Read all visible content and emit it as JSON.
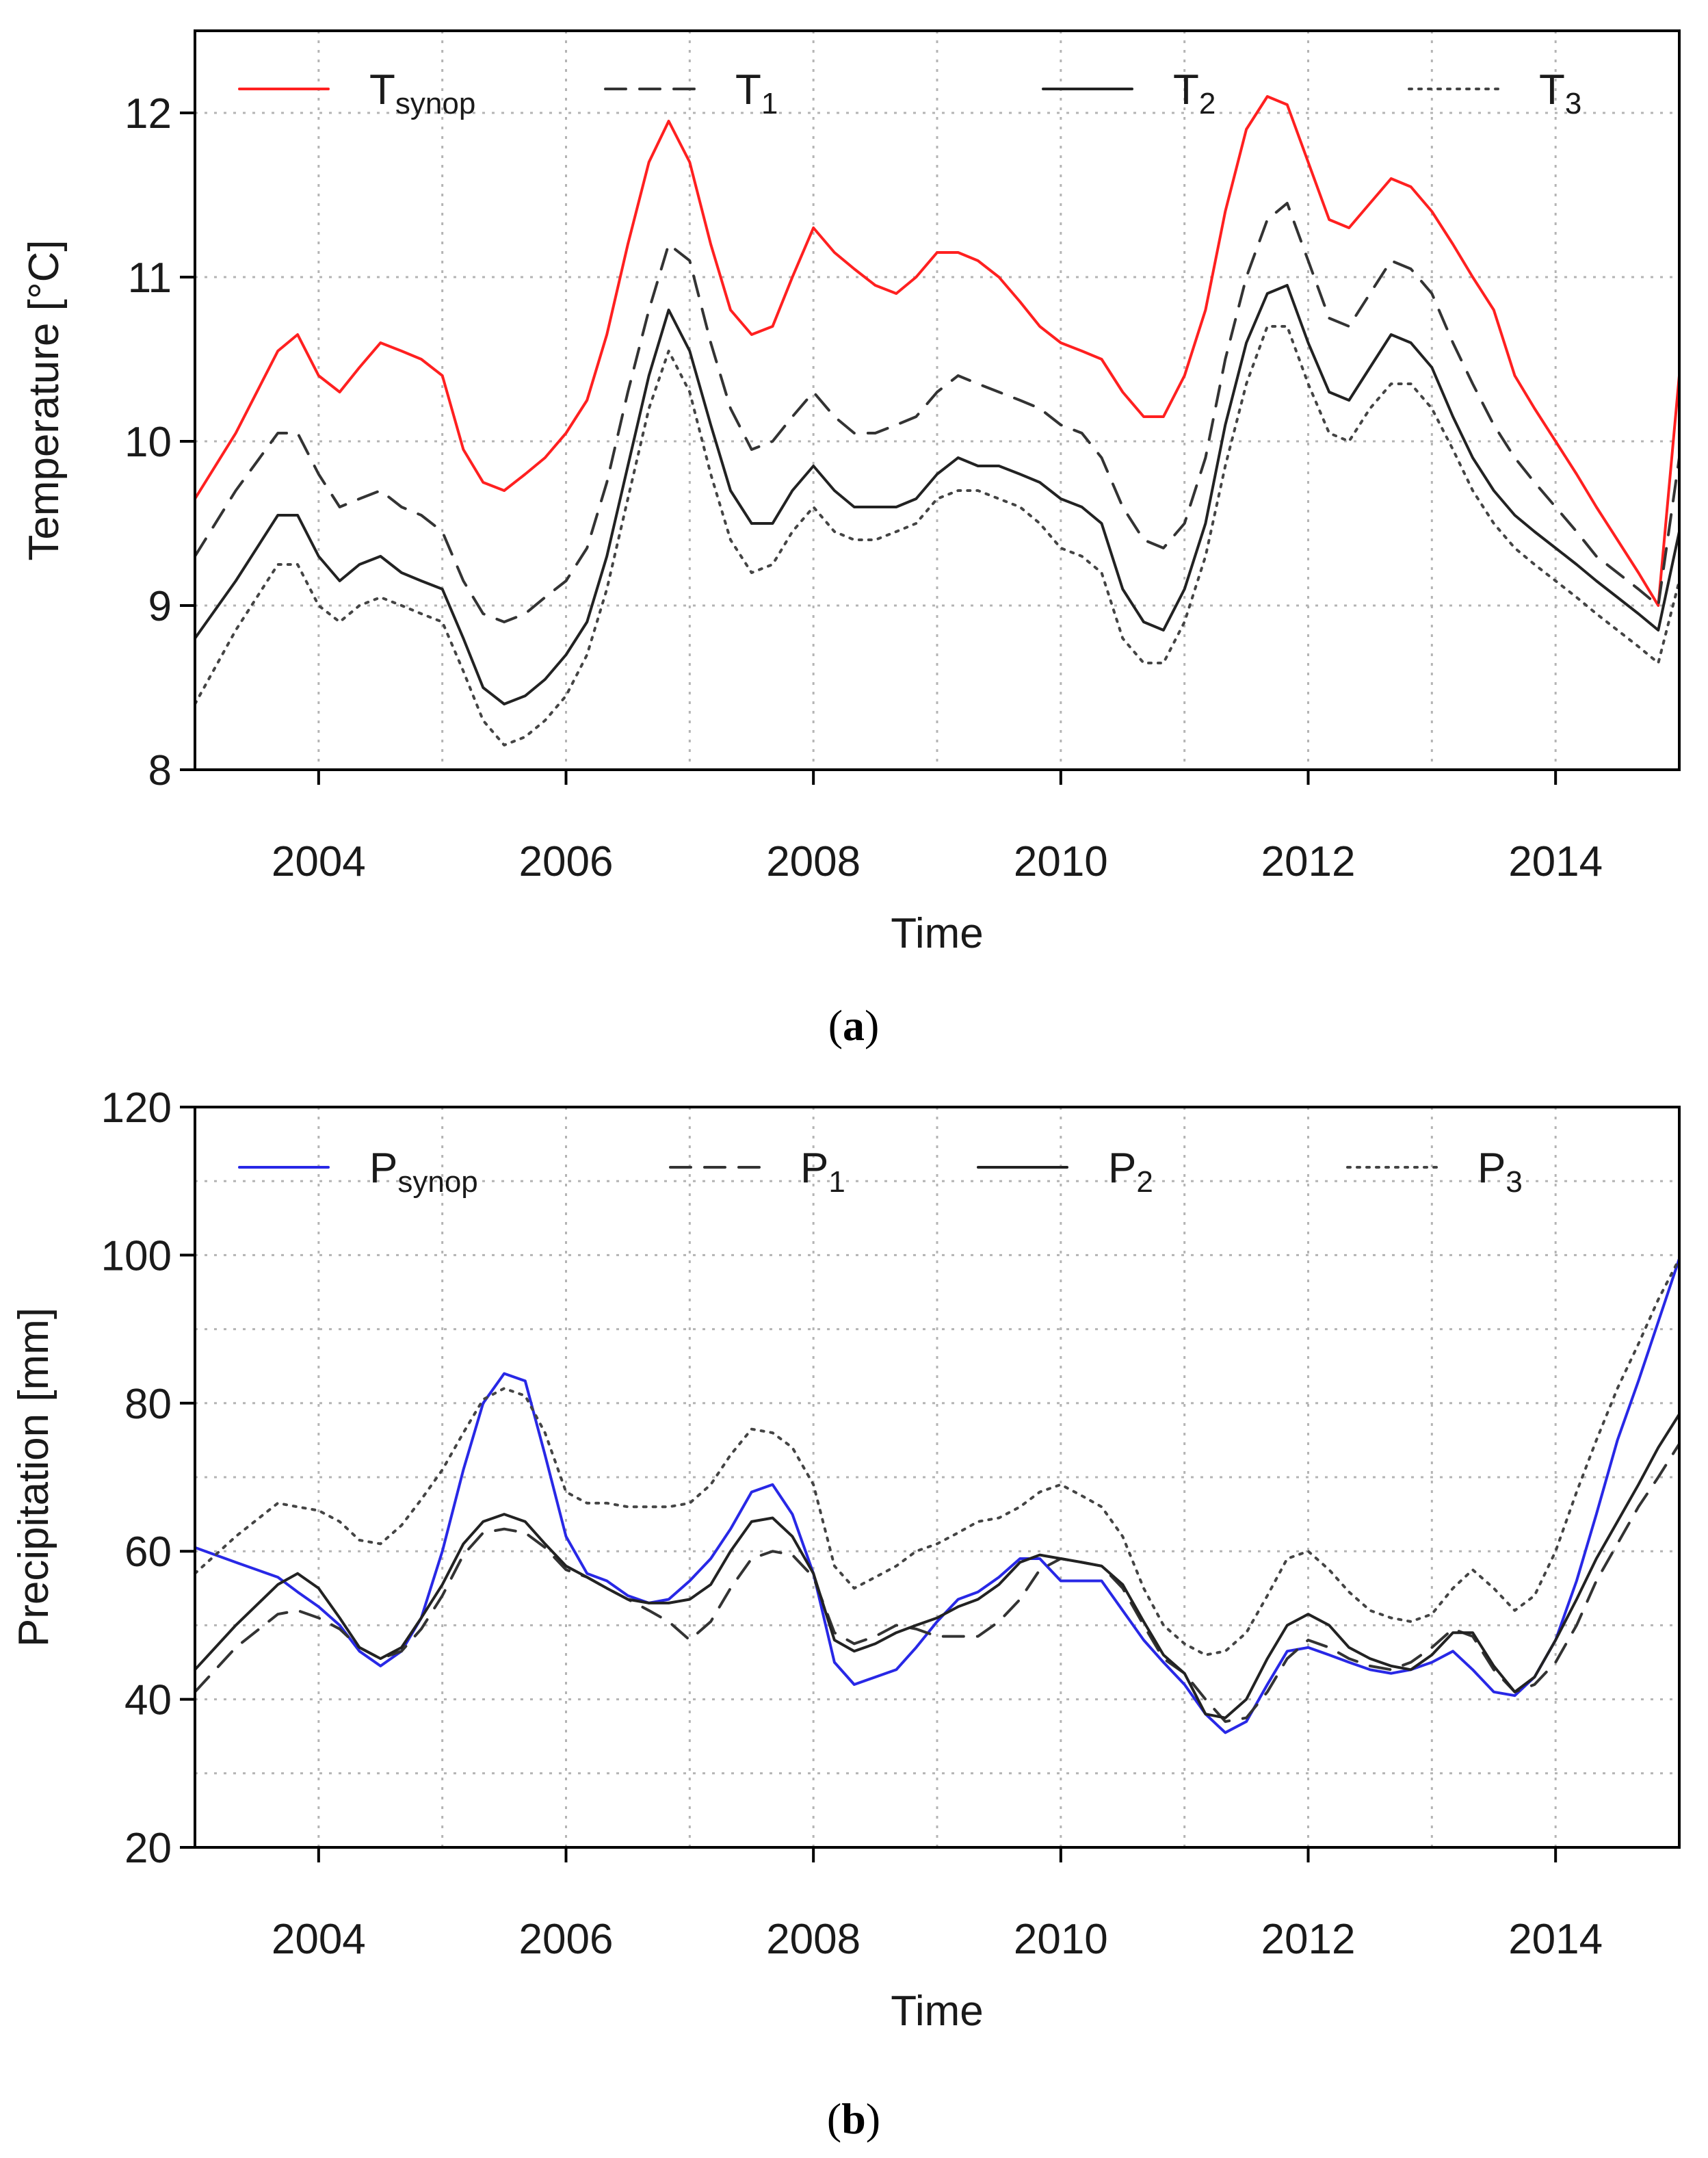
{
  "captions": [
    {
      "open": "(",
      "letter": "a",
      "close": ")"
    },
    {
      "open": "(",
      "letter": "b",
      "close": ")"
    }
  ],
  "chart_data": [
    {
      "id": "temperature",
      "type": "line",
      "xlabel": "Time",
      "ylabel": "Temperature [°C]",
      "xlim": [
        2003,
        2015
      ],
      "ylim": [
        8,
        12.5
      ],
      "yticks": [
        8,
        9,
        10,
        11,
        12
      ],
      "ytick_labels": [
        "8",
        "9",
        "10",
        "11",
        "12"
      ],
      "xticks": [
        2004,
        2006,
        2008,
        2010,
        2012,
        2014
      ],
      "xtick_labels": [
        "2004",
        "2006",
        "2008",
        "2010",
        "2012",
        "2014"
      ],
      "grid_x": [
        2003,
        2004,
        2005,
        2006,
        2007,
        2008,
        2009,
        2010,
        2011,
        2012,
        2013,
        2014
      ],
      "grid_y": [
        8,
        9,
        10,
        11,
        12
      ],
      "legend_position": "top",
      "x": [
        2003.0,
        2003.33,
        2003.67,
        2003.83,
        2004.0,
        2004.17,
        2004.33,
        2004.5,
        2004.67,
        2004.83,
        2005.0,
        2005.17,
        2005.33,
        2005.5,
        2005.67,
        2005.83,
        2006.0,
        2006.17,
        2006.33,
        2006.5,
        2006.67,
        2006.83,
        2007.0,
        2007.17,
        2007.33,
        2007.5,
        2007.67,
        2007.83,
        2008.0,
        2008.17,
        2008.33,
        2008.5,
        2008.67,
        2008.83,
        2009.0,
        2009.17,
        2009.33,
        2009.5,
        2009.67,
        2009.83,
        2010.0,
        2010.17,
        2010.33,
        2010.5,
        2010.67,
        2010.83,
        2011.0,
        2011.17,
        2011.33,
        2011.5,
        2011.67,
        2011.83,
        2012.0,
        2012.17,
        2012.33,
        2012.5,
        2012.67,
        2012.83,
        2013.0,
        2013.17,
        2013.33,
        2013.5,
        2013.67,
        2013.83,
        2014.0,
        2014.17,
        2014.33,
        2014.5,
        2014.67,
        2014.83,
        2015.0
      ],
      "series": [
        {
          "name": "T",
          "sub": "synop",
          "color": "#ff2020",
          "dash": "",
          "width": 4,
          "values": [
            9.65,
            10.05,
            10.55,
            10.65,
            10.4,
            10.3,
            10.45,
            10.6,
            10.55,
            10.5,
            10.4,
            9.95,
            9.75,
            9.7,
            9.8,
            9.9,
            10.05,
            10.25,
            10.65,
            11.2,
            11.7,
            11.95,
            11.7,
            11.2,
            10.8,
            10.65,
            10.7,
            11.0,
            11.3,
            11.15,
            11.05,
            10.95,
            10.9,
            11.0,
            11.15,
            11.15,
            11.1,
            11.0,
            10.85,
            10.7,
            10.6,
            10.55,
            10.5,
            10.3,
            10.15,
            10.15,
            10.4,
            10.8,
            11.4,
            11.9,
            12.1,
            12.05,
            11.7,
            11.35,
            11.3,
            11.45,
            11.6,
            11.55,
            11.4,
            11.2,
            11.0,
            10.8,
            10.4,
            10.2,
            10.0,
            9.8,
            9.6,
            9.4,
            9.2,
            9.0,
            10.4
          ]
        },
        {
          "name": "T",
          "sub": "1",
          "color": "#333333",
          "dash": "30 20",
          "width": 4,
          "values": [
            9.3,
            9.7,
            10.05,
            10.05,
            9.8,
            9.6,
            9.65,
            9.7,
            9.6,
            9.55,
            9.45,
            9.15,
            8.95,
            8.9,
            8.95,
            9.05,
            9.15,
            9.35,
            9.75,
            10.3,
            10.8,
            11.2,
            11.1,
            10.6,
            10.2,
            9.95,
            10.0,
            10.15,
            10.3,
            10.15,
            10.05,
            10.05,
            10.1,
            10.15,
            10.3,
            10.4,
            10.35,
            10.3,
            10.25,
            10.2,
            10.1,
            10.05,
            9.9,
            9.6,
            9.4,
            9.35,
            9.5,
            9.9,
            10.5,
            11.0,
            11.35,
            11.45,
            11.1,
            10.75,
            10.7,
            10.9,
            11.1,
            11.05,
            10.9,
            10.6,
            10.35,
            10.1,
            9.9,
            9.75,
            9.6,
            9.45,
            9.3,
            9.2,
            9.1,
            9.0,
            9.9
          ]
        },
        {
          "name": "T",
          "sub": "2",
          "color": "#222222",
          "dash": "",
          "width": 4,
          "values": [
            8.8,
            9.15,
            9.55,
            9.55,
            9.3,
            9.15,
            9.25,
            9.3,
            9.2,
            9.15,
            9.1,
            8.8,
            8.5,
            8.4,
            8.45,
            8.55,
            8.7,
            8.9,
            9.3,
            9.85,
            10.4,
            10.8,
            10.55,
            10.1,
            9.7,
            9.5,
            9.5,
            9.7,
            9.85,
            9.7,
            9.6,
            9.6,
            9.6,
            9.65,
            9.8,
            9.9,
            9.85,
            9.85,
            9.8,
            9.75,
            9.65,
            9.6,
            9.5,
            9.1,
            8.9,
            8.85,
            9.1,
            9.5,
            10.1,
            10.6,
            10.9,
            10.95,
            10.6,
            10.3,
            10.25,
            10.45,
            10.65,
            10.6,
            10.45,
            10.15,
            9.9,
            9.7,
            9.55,
            9.45,
            9.35,
            9.25,
            9.15,
            9.05,
            8.95,
            8.85,
            9.45
          ]
        },
        {
          "name": "T",
          "sub": "3",
          "color": "#444444",
          "dash": "4 10",
          "width": 4,
          "values": [
            8.4,
            8.85,
            9.25,
            9.25,
            9.0,
            8.9,
            9.0,
            9.05,
            9.0,
            8.95,
            8.9,
            8.6,
            8.3,
            8.15,
            8.2,
            8.3,
            8.45,
            8.7,
            9.1,
            9.65,
            10.2,
            10.55,
            10.3,
            9.8,
            9.4,
            9.2,
            9.25,
            9.45,
            9.6,
            9.45,
            9.4,
            9.4,
            9.45,
            9.5,
            9.65,
            9.7,
            9.7,
            9.65,
            9.6,
            9.5,
            9.35,
            9.3,
            9.2,
            8.8,
            8.65,
            8.65,
            8.9,
            9.3,
            9.85,
            10.35,
            10.7,
            10.7,
            10.35,
            10.05,
            10.0,
            10.2,
            10.35,
            10.35,
            10.2,
            9.95,
            9.7,
            9.5,
            9.35,
            9.25,
            9.15,
            9.05,
            8.95,
            8.85,
            8.75,
            8.65,
            9.15
          ]
        }
      ]
    },
    {
      "id": "precipitation",
      "type": "line",
      "xlabel": "Time",
      "ylabel": "Precipitation [mm]",
      "xlim": [
        2003,
        2015
      ],
      "ylim": [
        20,
        120
      ],
      "yticks": [
        20,
        40,
        60,
        80,
        100,
        120
      ],
      "ytick_labels": [
        "20",
        "40",
        "60",
        "80",
        "100",
        "120"
      ],
      "xticks": [
        2004,
        2006,
        2008,
        2010,
        2012,
        2014
      ],
      "xtick_labels": [
        "2004",
        "2006",
        "2008",
        "2010",
        "2012",
        "2014"
      ],
      "grid_x": [
        2003,
        2004,
        2005,
        2006,
        2007,
        2008,
        2009,
        2010,
        2011,
        2012,
        2013,
        2014
      ],
      "grid_y": [
        30,
        40,
        50,
        60,
        70,
        80,
        90,
        100,
        110
      ],
      "legend_position": "top",
      "x": [
        2003.0,
        2003.33,
        2003.67,
        2003.83,
        2004.0,
        2004.17,
        2004.33,
        2004.5,
        2004.67,
        2004.83,
        2005.0,
        2005.17,
        2005.33,
        2005.5,
        2005.67,
        2005.83,
        2006.0,
        2006.17,
        2006.33,
        2006.5,
        2006.67,
        2006.83,
        2007.0,
        2007.17,
        2007.33,
        2007.5,
        2007.67,
        2007.83,
        2008.0,
        2008.17,
        2008.33,
        2008.5,
        2008.67,
        2008.83,
        2009.0,
        2009.17,
        2009.33,
        2009.5,
        2009.67,
        2009.83,
        2010.0,
        2010.17,
        2010.33,
        2010.5,
        2010.67,
        2010.83,
        2011.0,
        2011.17,
        2011.33,
        2011.5,
        2011.67,
        2011.83,
        2012.0,
        2012.17,
        2012.33,
        2012.5,
        2012.67,
        2012.83,
        2013.0,
        2013.17,
        2013.33,
        2013.5,
        2013.67,
        2013.83,
        2014.0,
        2014.17,
        2014.33,
        2014.5,
        2014.67,
        2014.83,
        2015.0
      ],
      "series": [
        {
          "name": "P",
          "sub": "synop",
          "color": "#2828e6",
          "dash": "",
          "width": 4,
          "values": [
            60.5,
            58.5,
            56.5,
            54.5,
            52.5,
            50.0,
            46.5,
            44.5,
            46.5,
            51.0,
            60.0,
            71.0,
            80.0,
            84.0,
            83.0,
            73.0,
            62.0,
            57.0,
            56.0,
            54.0,
            53.0,
            53.5,
            56.0,
            59.0,
            63.0,
            68.0,
            69.0,
            65.0,
            57.0,
            45.0,
            42.0,
            43.0,
            44.0,
            47.0,
            50.5,
            53.5,
            54.5,
            56.5,
            59.0,
            59.0,
            56.0,
            56.0,
            56.0,
            52.0,
            48.0,
            45.0,
            42.0,
            38.0,
            35.5,
            37.0,
            42.0,
            46.5,
            47.0,
            46.0,
            45.0,
            44.0,
            43.5,
            44.0,
            45.0,
            46.5,
            44.0,
            41.0,
            40.5,
            43.0,
            48.0,
            56.0,
            65.0,
            75.0,
            83.0,
            91.0,
            99.5
          ]
        },
        {
          "name": "P",
          "sub": "1",
          "color": "#333333",
          "dash": "30 20",
          "width": 4,
          "values": [
            41.0,
            47.0,
            51.5,
            52.0,
            51.0,
            49.5,
            47.0,
            45.5,
            46.5,
            49.5,
            54.0,
            59.5,
            62.5,
            63.0,
            62.5,
            60.5,
            57.5,
            56.5,
            55.0,
            53.5,
            52.0,
            50.5,
            48.0,
            50.5,
            55.0,
            59.0,
            60.0,
            59.5,
            56.5,
            49.0,
            47.5,
            48.5,
            50.0,
            49.5,
            48.5,
            48.5,
            48.5,
            50.5,
            53.5,
            57.5,
            59.0,
            58.5,
            58.0,
            55.0,
            50.0,
            45.5,
            43.5,
            40.0,
            37.0,
            37.5,
            41.0,
            45.5,
            48.0,
            47.0,
            45.5,
            44.5,
            44.0,
            45.0,
            47.0,
            49.5,
            48.5,
            44.0,
            41.0,
            42.0,
            45.0,
            50.0,
            56.0,
            61.0,
            66.0,
            70.0,
            74.5
          ]
        },
        {
          "name": "P",
          "sub": "2",
          "color": "#222222",
          "dash": "",
          "width": 4,
          "values": [
            44.0,
            50.0,
            55.5,
            57.0,
            55.0,
            51.0,
            47.0,
            45.5,
            47.0,
            51.0,
            55.5,
            61.0,
            64.0,
            65.0,
            64.0,
            61.0,
            58.0,
            56.5,
            55.0,
            53.5,
            53.0,
            53.0,
            53.5,
            55.5,
            60.0,
            64.0,
            64.5,
            62.0,
            57.0,
            48.0,
            46.5,
            47.5,
            49.0,
            50.0,
            51.0,
            52.5,
            53.5,
            55.5,
            58.5,
            59.5,
            59.0,
            58.5,
            58.0,
            55.5,
            50.5,
            46.0,
            43.5,
            38.0,
            37.5,
            40.0,
            45.5,
            50.0,
            51.5,
            50.0,
            47.0,
            45.5,
            44.5,
            44.0,
            46.0,
            49.0,
            49.0,
            44.5,
            41.0,
            43.0,
            48.0,
            53.5,
            59.0,
            64.0,
            69.0,
            74.0,
            78.5
          ]
        },
        {
          "name": "P",
          "sub": "3",
          "color": "#444444",
          "dash": "4 10",
          "width": 4,
          "values": [
            57.0,
            62.0,
            66.5,
            66.0,
            65.5,
            64.0,
            61.5,
            61.0,
            63.5,
            67.0,
            71.0,
            76.0,
            80.5,
            82.0,
            81.0,
            76.0,
            68.0,
            66.5,
            66.5,
            66.0,
            66.0,
            66.0,
            66.5,
            69.0,
            73.0,
            76.5,
            76.0,
            74.0,
            69.0,
            58.0,
            55.0,
            56.5,
            58.0,
            60.0,
            61.0,
            62.5,
            64.0,
            64.5,
            66.0,
            68.0,
            69.0,
            67.5,
            66.0,
            62.0,
            55.0,
            50.0,
            47.5,
            46.0,
            46.5,
            49.0,
            54.0,
            59.0,
            60.0,
            57.5,
            54.5,
            52.0,
            51.0,
            50.5,
            51.5,
            55.0,
            57.5,
            55.0,
            52.0,
            54.0,
            60.0,
            68.0,
            75.0,
            82.0,
            88.0,
            94.0,
            99.5
          ]
        }
      ]
    }
  ]
}
